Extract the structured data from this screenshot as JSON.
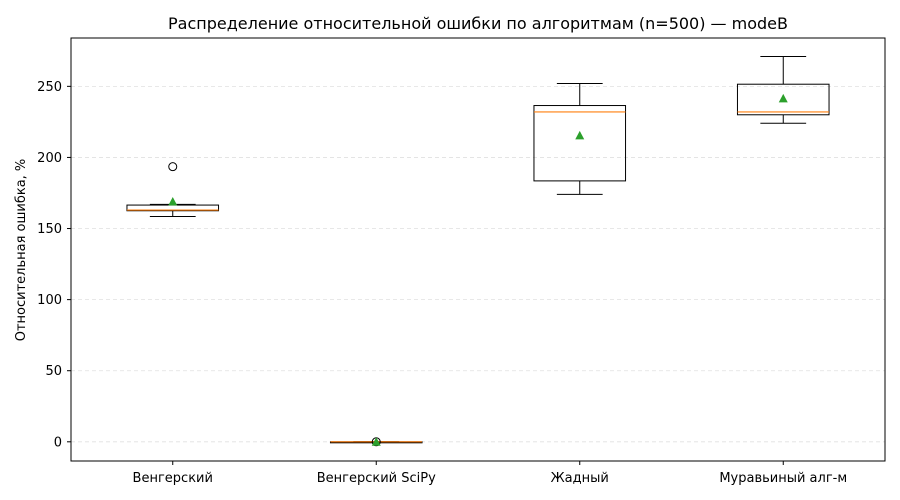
{
  "chart_data": {
    "type": "box",
    "title": "Распределение относительной ошибки по алгоритмам (n=500) — modeB",
    "xlabel": "",
    "ylabel": "Относительная ошибка, %",
    "ylim": [
      -13.5,
      284
    ],
    "yticks": [
      0,
      50,
      100,
      150,
      200,
      250
    ],
    "grid": "y-dashed",
    "categories": [
      "Венгерский",
      "Венгерский SciPy",
      "Жадный",
      "Муравьиный алг-м"
    ],
    "boxes": [
      {
        "whislo": 158.5,
        "q1": 162.5,
        "med": 163.0,
        "q3": 166.5,
        "whishi": 167.0,
        "mean": 169.0,
        "fliers": [
          193.5
        ]
      },
      {
        "whislo": 0.0,
        "q1": 0.0,
        "med": 0.0,
        "q3": 0.0,
        "whishi": 0.0,
        "mean": 0.0,
        "fliers": [
          0.0
        ]
      },
      {
        "whislo": 174.0,
        "q1": 183.5,
        "med": 232.0,
        "q3": 236.5,
        "whishi": 252.0,
        "mean": 215.5,
        "fliers": []
      },
      {
        "whislo": 224.0,
        "q1": 230.0,
        "med": 232.0,
        "q3": 251.5,
        "whishi": 271.0,
        "mean": 241.5,
        "fliers": []
      }
    ],
    "colors": {
      "box": "#000000",
      "median": "#ff7f0e",
      "mean": "#2ca02c",
      "grid": "#e0e0e0"
    }
  }
}
